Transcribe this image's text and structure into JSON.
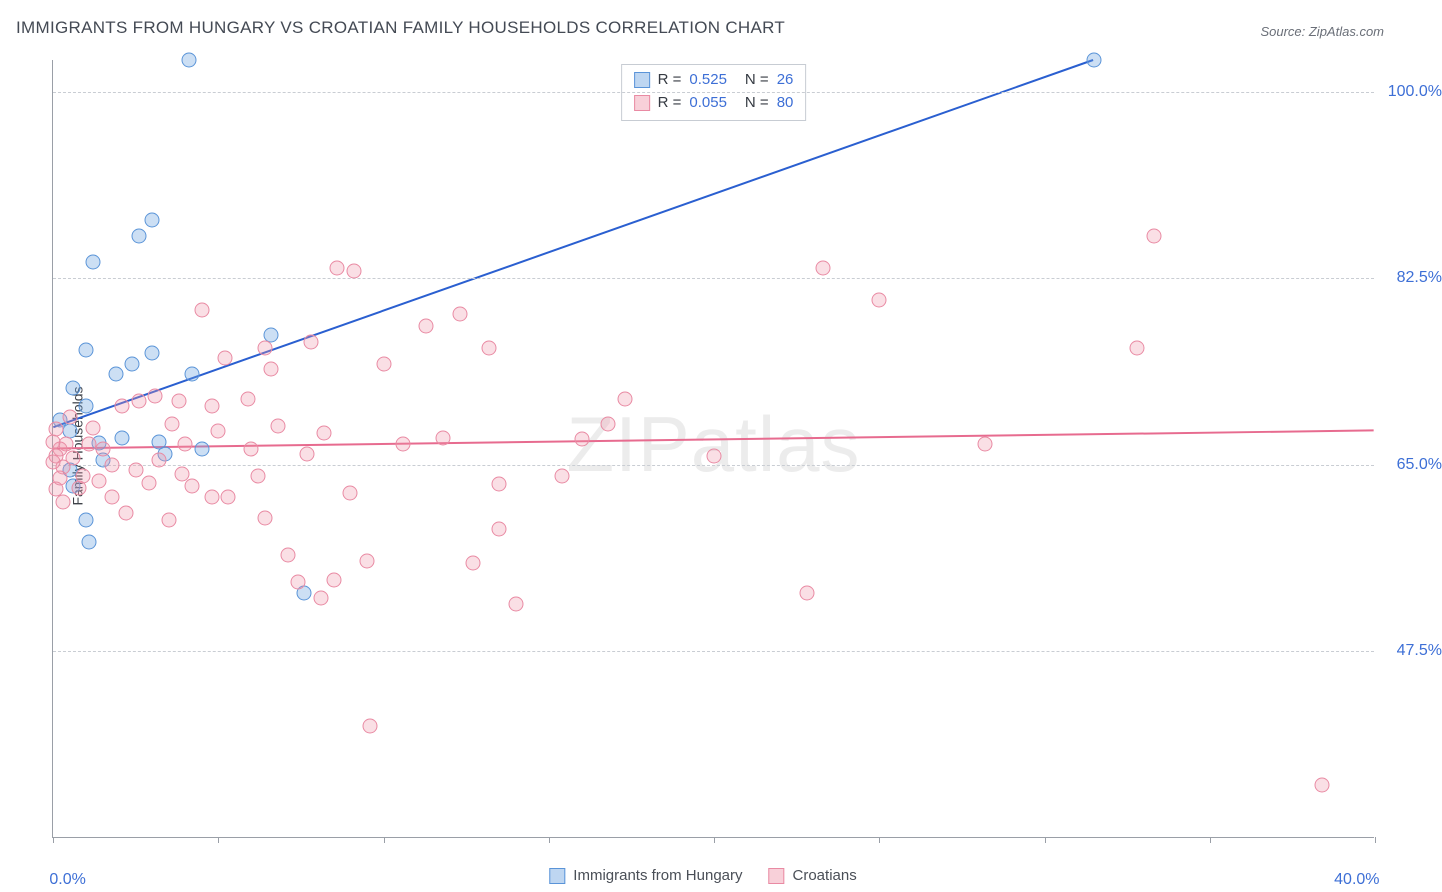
{
  "title": "IMMIGRANTS FROM HUNGARY VS CROATIAN FAMILY HOUSEHOLDS CORRELATION CHART",
  "source": "Source: ZipAtlas.com",
  "watermark": "ZIPatlas",
  "ylabel_text": "Family Households",
  "chart": {
    "type": "scatter",
    "xlim": [
      0,
      40
    ],
    "ylim": [
      30,
      103
    ],
    "background_color": "#ffffff",
    "grid_color": "#c9cdd3",
    "axis_color": "#9a9fa7",
    "xticks": [
      {
        "v": 0,
        "lab": "0.0%"
      },
      {
        "v": 5,
        "lab": ""
      },
      {
        "v": 10,
        "lab": ""
      },
      {
        "v": 15,
        "lab": ""
      },
      {
        "v": 20,
        "lab": ""
      },
      {
        "v": 25,
        "lab": ""
      },
      {
        "v": 30,
        "lab": ""
      },
      {
        "v": 35,
        "lab": ""
      },
      {
        "v": 40,
        "lab": "40.0%"
      }
    ],
    "yticks": [
      {
        "v": 47.5,
        "lab": "47.5%"
      },
      {
        "v": 65.0,
        "lab": "65.0%"
      },
      {
        "v": 82.5,
        "lab": "82.5%"
      },
      {
        "v": 100.0,
        "lab": "100.0%"
      }
    ],
    "tick_label_color": "#3d6fd6",
    "tick_label_fontsize": 16,
    "series": [
      {
        "name": "Immigrants from Hungary",
        "color_fill": "rgba(110,163,224,0.35)",
        "color_stroke": "#5a94d8",
        "trend_color": "#2a5fd0",
        "trend_width": 2,
        "R": "0.525",
        "N": "26",
        "marker_radius": 7.5,
        "trend": {
          "x1": 0,
          "y1": 68.5,
          "x2": 31.5,
          "y2": 103
        },
        "points": [
          [
            4.1,
            103
          ],
          [
            3.0,
            88.0
          ],
          [
            2.6,
            86.5
          ],
          [
            1.2,
            84.0
          ],
          [
            1.0,
            75.8
          ],
          [
            3.0,
            75.5
          ],
          [
            2.4,
            74.5
          ],
          [
            1.9,
            73.5
          ],
          [
            4.2,
            73.5
          ],
          [
            6.6,
            77.2
          ],
          [
            0.6,
            72.2
          ],
          [
            1.0,
            70.5
          ],
          [
            0.2,
            69.2
          ],
          [
            0.5,
            68.2
          ],
          [
            1.4,
            67.1
          ],
          [
            2.1,
            67.5
          ],
          [
            3.2,
            67.2
          ],
          [
            3.4,
            66.0
          ],
          [
            4.5,
            66.5
          ],
          [
            1.5,
            65.5
          ],
          [
            0.5,
            64.5
          ],
          [
            0.6,
            63.0
          ],
          [
            1.0,
            59.8
          ],
          [
            1.1,
            57.8
          ],
          [
            7.6,
            53.0
          ],
          [
            31.5,
            103
          ]
        ]
      },
      {
        "name": "Croatians",
        "color_fill": "rgba(240,150,170,0.30)",
        "color_stroke": "#e98aa3",
        "trend_color": "#e76b8f",
        "trend_width": 2,
        "R": "0.055",
        "N": "80",
        "marker_radius": 7.5,
        "trend": {
          "x1": 0,
          "y1": 66.5,
          "x2": 40,
          "y2": 68.2
        },
        "points": [
          [
            33.3,
            86.5
          ],
          [
            23.3,
            83.5
          ],
          [
            25.0,
            80.5
          ],
          [
            32.8,
            76.0
          ],
          [
            20.0,
            65.8
          ],
          [
            28.2,
            67.0
          ],
          [
            8.6,
            83.5
          ],
          [
            9.1,
            83.2
          ],
          [
            12.3,
            79.2
          ],
          [
            13.2,
            76.0
          ],
          [
            11.3,
            78.0
          ],
          [
            17.3,
            71.2
          ],
          [
            16.8,
            68.8
          ],
          [
            15.4,
            64.0
          ],
          [
            16.0,
            67.4
          ],
          [
            13.5,
            63.2
          ],
          [
            22.8,
            53.0
          ],
          [
            38.4,
            35.0
          ],
          [
            9.6,
            40.5
          ],
          [
            14.0,
            52.0
          ],
          [
            12.7,
            55.8
          ],
          [
            13.5,
            59.0
          ],
          [
            9.5,
            56.0
          ],
          [
            9.0,
            62.4
          ],
          [
            7.4,
            54.0
          ],
          [
            7.1,
            56.6
          ],
          [
            8.1,
            52.5
          ],
          [
            8.5,
            54.2
          ],
          [
            6.4,
            60.0
          ],
          [
            5.3,
            62.0
          ],
          [
            4.8,
            62.0
          ],
          [
            4.2,
            63.0
          ],
          [
            3.9,
            64.2
          ],
          [
            4.8,
            70.5
          ],
          [
            3.8,
            71.0
          ],
          [
            5.9,
            71.2
          ],
          [
            6.8,
            68.7
          ],
          [
            6.0,
            66.5
          ],
          [
            7.7,
            66.0
          ],
          [
            8.2,
            68.0
          ],
          [
            6.4,
            76.0
          ],
          [
            4.5,
            79.5
          ],
          [
            5.2,
            75.0
          ],
          [
            3.1,
            71.5
          ],
          [
            3.6,
            68.8
          ],
          [
            2.6,
            71.0
          ],
          [
            2.1,
            70.5
          ],
          [
            2.5,
            64.5
          ],
          [
            1.8,
            65.0
          ],
          [
            1.5,
            66.5
          ],
          [
            1.1,
            67.0
          ],
          [
            0.4,
            67.0
          ],
          [
            0.2,
            66.5
          ],
          [
            0.1,
            65.8
          ],
          [
            0.3,
            64.8
          ],
          [
            0.6,
            65.7
          ],
          [
            0.9,
            64.0
          ],
          [
            1.4,
            63.5
          ],
          [
            0.1,
            62.7
          ],
          [
            0.3,
            61.5
          ],
          [
            1.8,
            62.0
          ],
          [
            2.9,
            63.3
          ],
          [
            2.2,
            60.5
          ],
          [
            3.5,
            59.8
          ],
          [
            6.6,
            74.0
          ],
          [
            7.8,
            76.5
          ],
          [
            10.0,
            74.5
          ],
          [
            10.6,
            67.0
          ],
          [
            11.8,
            67.5
          ],
          [
            0.0,
            67.2
          ],
          [
            0.1,
            68.4
          ],
          [
            0.5,
            69.5
          ],
          [
            1.2,
            68.5
          ],
          [
            0.0,
            65.3
          ],
          [
            0.2,
            63.8
          ],
          [
            0.8,
            62.8
          ],
          [
            3.2,
            65.5
          ],
          [
            4.0,
            67.0
          ],
          [
            5.0,
            68.2
          ],
          [
            6.2,
            64.0
          ]
        ]
      }
    ],
    "legend_bottom": [
      {
        "swatch": "blue",
        "label": "Immigrants from Hungary"
      },
      {
        "swatch": "pink",
        "label": "Croatians"
      }
    ]
  }
}
